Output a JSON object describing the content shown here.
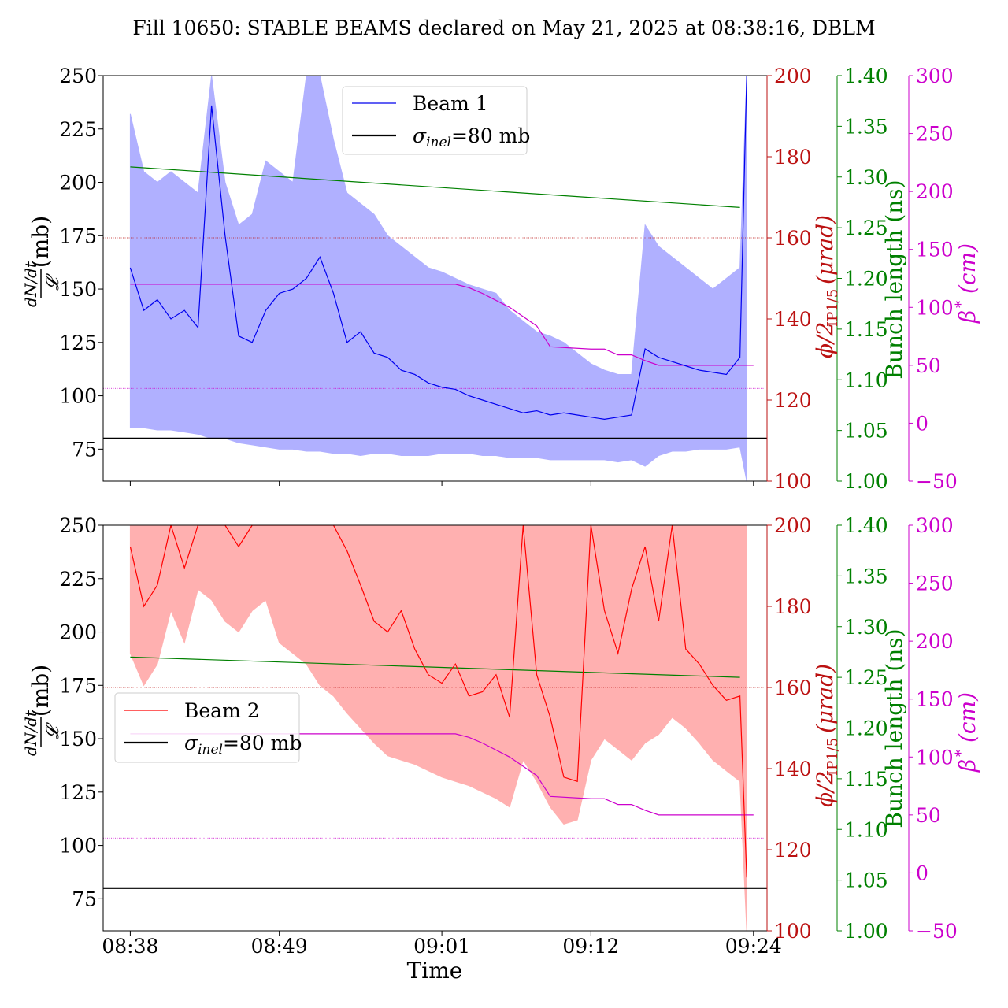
{
  "title": "Fill 10650: STABLE BEAMS declared on May 21, 2025 at 08:38:16, DBLM",
  "xlabel": "Time",
  "x_ticks": [
    "08:38",
    "08:49",
    "09:01",
    "09:12",
    "09:24"
  ],
  "colors": {
    "beam1": "#0000ee",
    "beam1_fill": "#b0b0ff",
    "beam2": "#ff0000",
    "beam2_fill": "#ffb0b0",
    "crossing": "#bb1111",
    "bunch_length": "#008000",
    "beta": "#cc00cc",
    "sigma": "#000000"
  },
  "axes": {
    "left": {
      "label_num": "dN/dt",
      "label_den": "𝓛",
      "label_unit": "(mb)",
      "range": [
        60,
        250
      ],
      "ticks": [
        "75",
        "100",
        "125",
        "150",
        "175",
        "200",
        "225",
        "250"
      ]
    },
    "crossing": {
      "label": "ϕ/2",
      "label_sub": "IP1/5",
      "label_unit": "(μrad)",
      "range": [
        100,
        200
      ],
      "ticks": [
        "100",
        "120",
        "140",
        "160",
        "180",
        "200"
      ]
    },
    "bunch": {
      "label": "Bunch length (ns)",
      "range": [
        1.0,
        1.4
      ],
      "ticks": [
        "1.00",
        "1.05",
        "1.10",
        "1.15",
        "1.20",
        "1.25",
        "1.30",
        "1.35",
        "1.40"
      ]
    },
    "beta": {
      "label": "β",
      "label_sup": "*",
      "label_unit": "(cm)",
      "range": [
        -50,
        300
      ],
      "ticks": [
        "−50",
        "0",
        "50",
        "100",
        "150",
        "200",
        "250",
        "300"
      ]
    }
  },
  "legend_top": {
    "series": "Beam 1",
    "sigma": "σ",
    "sigma_sub": "inel",
    "sigma_rest": "=80 mb"
  },
  "legend_bottom": {
    "series": "Beam 2",
    "sigma": "σ",
    "sigma_sub": "inel",
    "sigma_rest": "=80 mb"
  },
  "chart_data": [
    {
      "type": "line",
      "panel": "top",
      "x_unit": "minutes after 08:38",
      "x_range": [
        -2,
        47
      ],
      "series": [
        {
          "name": "Beam 1",
          "x": [
            0,
            1,
            2,
            3,
            4,
            5,
            6,
            7,
            8,
            9,
            10,
            11,
            12,
            13,
            14,
            15,
            16,
            17,
            18,
            19,
            20,
            21,
            22,
            23,
            24,
            25,
            26,
            27,
            28,
            29,
            30,
            31,
            32,
            33,
            34,
            35,
            36,
            37,
            38,
            39,
            40,
            41,
            42,
            43,
            44,
            45,
            45.5
          ],
          "y": [
            160,
            140,
            145,
            136,
            140,
            132,
            236,
            175,
            128,
            125,
            140,
            148,
            150,
            155,
            165,
            148,
            125,
            130,
            120,
            118,
            112,
            110,
            106,
            104,
            103,
            100,
            98,
            96,
            94,
            92,
            93,
            91,
            92,
            91,
            90,
            89,
            90,
            91,
            122,
            118,
            116,
            114,
            112,
            111,
            110,
            118,
            250
          ],
          "band_upper": [
            232,
            205,
            200,
            205,
            200,
            195,
            250,
            200,
            180,
            185,
            210,
            205,
            200,
            250,
            250,
            220,
            195,
            190,
            185,
            175,
            170,
            165,
            160,
            158,
            155,
            152,
            150,
            148,
            140,
            135,
            130,
            128,
            125,
            120,
            115,
            112,
            110,
            110,
            180,
            170,
            165,
            160,
            155,
            150,
            155,
            160,
            250
          ],
          "band_lower": [
            85,
            85,
            84,
            84,
            83,
            82,
            80,
            80,
            78,
            77,
            76,
            75,
            75,
            74,
            74,
            73,
            73,
            72,
            73,
            73,
            72,
            72,
            72,
            73,
            73,
            73,
            72,
            72,
            71,
            71,
            71,
            70,
            70,
            70,
            70,
            70,
            69,
            70,
            67,
            72,
            74,
            74,
            75,
            75,
            75,
            76,
            60
          ]
        },
        {
          "name": "Bunch length",
          "axis": "bunch",
          "x": [
            0,
            45
          ],
          "y": [
            1.31,
            1.27
          ]
        },
        {
          "name": "β*",
          "axis": "beta",
          "x": [
            0,
            13,
            24,
            25,
            26,
            28,
            30,
            31,
            34,
            35,
            36,
            37,
            38,
            39,
            40,
            46
          ],
          "y": [
            120,
            120,
            120,
            117,
            112,
            100,
            84,
            66,
            64,
            64,
            59,
            59,
            54,
            50,
            50,
            50
          ]
        },
        {
          "name": "σinel=80 mb",
          "x": [
            -2,
            47
          ],
          "y": [
            80,
            80
          ]
        }
      ],
      "reference_lines": {
        "crossing": 160,
        "beta": 30
      }
    },
    {
      "type": "line",
      "panel": "bottom",
      "x_unit": "minutes after 08:38",
      "x_range": [
        -2,
        47
      ],
      "series": [
        {
          "name": "Beam 2",
          "x": [
            0,
            1,
            2,
            3,
            4,
            5,
            6,
            7,
            8,
            9,
            10,
            11,
            12,
            13,
            14,
            15,
            16,
            17,
            18,
            19,
            20,
            21,
            22,
            23,
            24,
            25,
            26,
            27,
            28,
            29,
            30,
            31,
            32,
            33,
            34,
            35,
            36,
            37,
            38,
            39,
            40,
            41,
            42,
            43,
            44,
            45,
            45.5
          ],
          "y": [
            240,
            212,
            222,
            250,
            230,
            250,
            250,
            250,
            240,
            250,
            250,
            250,
            250,
            250,
            250,
            250,
            238,
            222,
            205,
            200,
            210,
            192,
            180,
            176,
            185,
            170,
            172,
            180,
            160,
            250,
            180,
            160,
            132,
            130,
            250,
            210,
            190,
            220,
            240,
            205,
            250,
            192,
            185,
            175,
            168,
            170,
            85
          ],
          "band_upper": [
            250,
            250,
            250,
            250,
            250,
            250,
            250,
            250,
            250,
            250,
            250,
            250,
            250,
            250,
            250,
            250,
            250,
            250,
            250,
            250,
            250,
            250,
            250,
            250,
            250,
            250,
            250,
            250,
            250,
            250,
            250,
            250,
            250,
            250,
            250,
            250,
            250,
            250,
            250,
            250,
            250,
            250,
            250,
            250,
            250,
            250,
            250
          ],
          "band_lower": [
            190,
            175,
            185,
            210,
            195,
            220,
            215,
            205,
            200,
            210,
            215,
            195,
            190,
            185,
            175,
            170,
            162,
            155,
            148,
            142,
            140,
            138,
            135,
            132,
            130,
            128,
            125,
            122,
            118,
            140,
            130,
            118,
            110,
            112,
            140,
            150,
            145,
            140,
            148,
            152,
            160,
            155,
            148,
            140,
            135,
            130,
            60
          ]
        },
        {
          "name": "Bunch length",
          "axis": "bunch",
          "x": [
            0,
            45
          ],
          "y": [
            1.27,
            1.25
          ]
        },
        {
          "name": "β*",
          "axis": "beta",
          "x": [
            0,
            13,
            24,
            25,
            26,
            28,
            30,
            31,
            34,
            35,
            36,
            37,
            38,
            39,
            40,
            46
          ],
          "y": [
            120,
            120,
            120,
            117,
            112,
            100,
            84,
            66,
            64,
            64,
            59,
            59,
            54,
            50,
            50,
            50
          ]
        },
        {
          "name": "σinel=80 mb",
          "x": [
            -2,
            47
          ],
          "y": [
            80,
            80
          ]
        }
      ],
      "reference_lines": {
        "crossing": 160,
        "beta": 30
      }
    }
  ]
}
